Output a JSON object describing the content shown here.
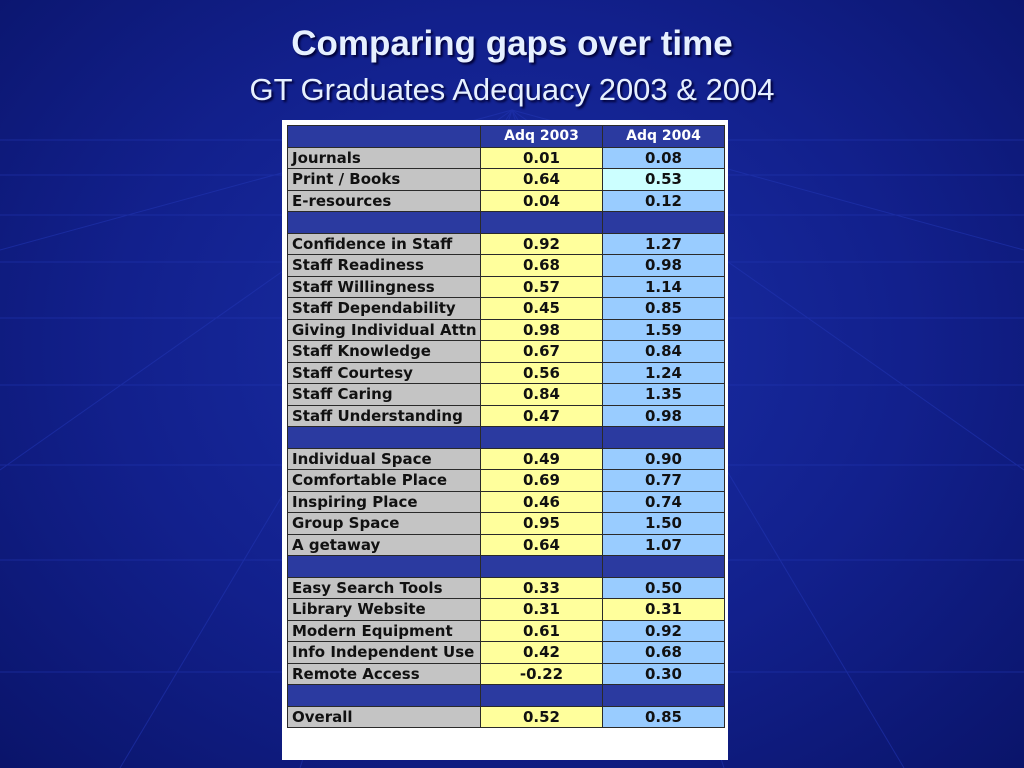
{
  "title": "Comparing gaps over time",
  "subtitle": "GT Graduates Adequacy 2003 & 2004",
  "colors": {
    "background": "#12208c",
    "header": "#2b3aa0",
    "label_cell": "#c4c4c4",
    "yellow_cell": "#ffff9c",
    "blue_cell": "#99ccff",
    "light_cell": "#ccffff"
  },
  "table": {
    "headers": [
      "",
      "Adq 2003",
      "Adq 2004"
    ],
    "rows": [
      {
        "label": "Journals",
        "adq2003": "0.01",
        "adq2004": "0.08",
        "c2004": "blue"
      },
      {
        "label": "Print / Books",
        "adq2003": "0.64",
        "adq2004": "0.53",
        "c2004": "light"
      },
      {
        "label": "E-resources",
        "adq2003": "0.04",
        "adq2004": "0.12",
        "c2004": "blue"
      },
      {
        "separator": true
      },
      {
        "label": "Confidence in Staff",
        "adq2003": "0.92",
        "adq2004": "1.27",
        "c2004": "blue"
      },
      {
        "label": "Staff Readiness",
        "adq2003": "0.68",
        "adq2004": "0.98",
        "c2004": "blue"
      },
      {
        "label": "Staff Willingness",
        "adq2003": "0.57",
        "adq2004": "1.14",
        "c2004": "blue"
      },
      {
        "label": "Staff Dependability",
        "adq2003": "0.45",
        "adq2004": "0.85",
        "c2004": "blue"
      },
      {
        "label": "Giving Individual Attn",
        "adq2003": "0.98",
        "adq2004": "1.59",
        "c2004": "blue"
      },
      {
        "label": "Staff Knowledge",
        "adq2003": "0.67",
        "adq2004": "0.84",
        "c2004": "blue"
      },
      {
        "label": "Staff Courtesy",
        "adq2003": "0.56",
        "adq2004": "1.24",
        "c2004": "blue"
      },
      {
        "label": "Staff Caring",
        "adq2003": "0.84",
        "adq2004": "1.35",
        "c2004": "blue"
      },
      {
        "label": "Staff Understanding",
        "adq2003": "0.47",
        "adq2004": "0.98",
        "c2004": "blue"
      },
      {
        "separator": true
      },
      {
        "label": "Individual Space",
        "adq2003": "0.49",
        "adq2004": "0.90",
        "c2004": "blue"
      },
      {
        "label": "Comfortable Place",
        "adq2003": "0.69",
        "adq2004": "0.77",
        "c2004": "blue"
      },
      {
        "label": "Inspiring Place",
        "adq2003": "0.46",
        "adq2004": "0.74",
        "c2004": "blue"
      },
      {
        "label": "Group Space",
        "adq2003": "0.95",
        "adq2004": "1.50",
        "c2004": "blue"
      },
      {
        "label": "A getaway",
        "adq2003": "0.64",
        "adq2004": "1.07",
        "c2004": "blue"
      },
      {
        "separator": true
      },
      {
        "label": "Easy Search Tools",
        "adq2003": "0.33",
        "adq2004": "0.50",
        "c2004": "blue"
      },
      {
        "label": "Library Website",
        "adq2003": "0.31",
        "adq2004": "0.31",
        "c2004": "yellow"
      },
      {
        "label": "Modern Equipment",
        "adq2003": "0.61",
        "adq2004": "0.92",
        "c2004": "blue"
      },
      {
        "label": "Info Independent Use",
        "adq2003": "0.42",
        "adq2004": "0.68",
        "c2004": "blue"
      },
      {
        "label": "Remote Access",
        "adq2003": "-0.22",
        "adq2004": "0.30",
        "c2004": "blue"
      },
      {
        "separator": true
      },
      {
        "label": "Overall",
        "adq2003": "0.52",
        "adq2004": "0.85",
        "c2004": "blue"
      }
    ]
  }
}
